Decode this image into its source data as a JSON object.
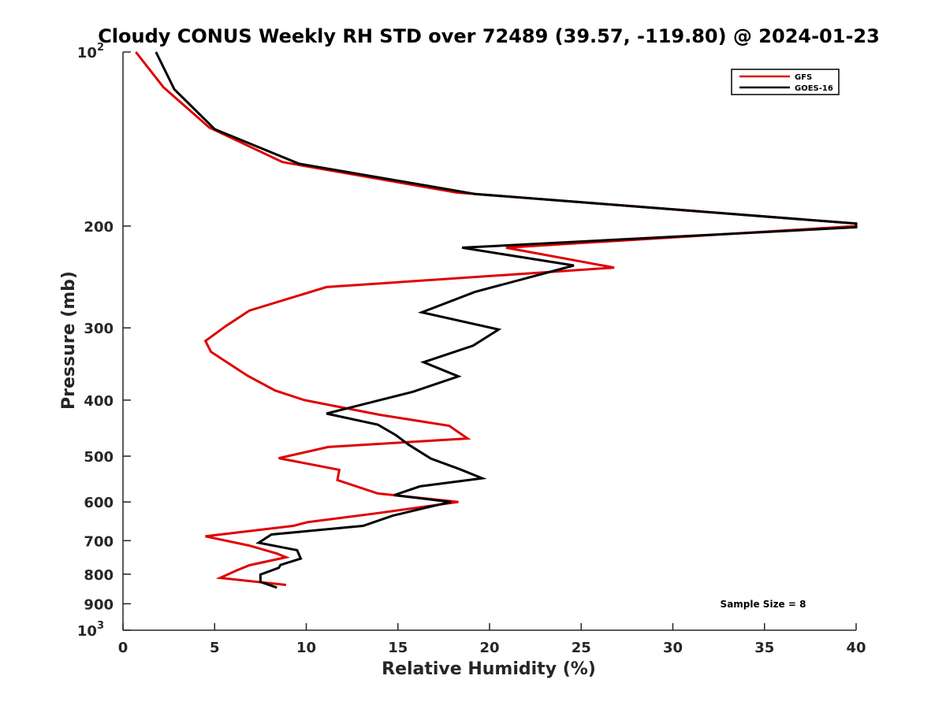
{
  "chart_data": {
    "type": "line",
    "title": "Cloudy CONUS Weekly RH STD over 72489 (39.57, -119.80) @ 2024-01-23",
    "xlabel": "Relative Humidity (%)",
    "ylabel": "Pressure (mb)",
    "xlim": [
      0,
      40
    ],
    "ylim": [
      100,
      1000
    ],
    "yscale": "log",
    "y_reversed": true,
    "x_ticks": [
      "0",
      "5",
      "10",
      "15",
      "20",
      "25",
      "30",
      "35",
      "40"
    ],
    "y_ticks": [
      {
        "value": 100,
        "label": "10",
        "exp": "2"
      },
      {
        "value": 200,
        "label": "200"
      },
      {
        "value": 300,
        "label": "300"
      },
      {
        "value": 400,
        "label": "400"
      },
      {
        "value": 500,
        "label": "500"
      },
      {
        "value": 600,
        "label": "600"
      },
      {
        "value": 700,
        "label": "700"
      },
      {
        "value": 800,
        "label": "800"
      },
      {
        "value": 900,
        "label": "900"
      },
      {
        "value": 1000,
        "label": "10",
        "exp": "3"
      }
    ],
    "legend": {
      "position": "top-right",
      "entries": [
        "GFS",
        "GOES-16"
      ]
    },
    "annotation": "Sample Size = 8",
    "series": [
      {
        "name": "GFS",
        "color": "#e00000",
        "x": [
          0.7,
          2.2,
          4.7,
          8.7,
          18.2,
          40,
          40,
          20.9,
          26.8,
          11.1,
          6.9,
          5.6,
          4.5,
          4.8,
          6.8,
          8.3,
          9.9,
          14.0,
          17.8,
          18.8,
          11.2,
          8.5,
          11.8,
          11.7,
          13.9,
          18.3,
          13.8,
          10.1,
          9.3,
          4.5,
          6.9,
          8.4,
          8.9,
          6.9,
          6.2,
          5.3,
          8.9
        ],
        "y": [
          100,
          115,
          135,
          155,
          175,
          198,
          200,
          218,
          236,
          255,
          280,
          298,
          316,
          330,
          363,
          385,
          400,
          424,
          443,
          466,
          482,
          504,
          528,
          550,
          580,
          600,
          628,
          650,
          660,
          688,
          714,
          737,
          748,
          772,
          788,
          812,
          835
        ]
      },
      {
        "name": "GOES-16",
        "color": "#000000",
        "x": [
          1.8,
          2.8,
          5.0,
          9.6,
          19.2,
          40,
          40,
          18.5,
          24.6,
          19.2,
          16.3,
          20.5,
          19.1,
          16.4,
          18.3,
          15.8,
          11.1,
          13.9,
          14.9,
          15.6,
          16.8,
          18.4,
          19.6,
          16.2,
          14.8,
          17.9,
          16.6,
          14.7,
          13.1,
          8.1,
          7.4,
          9.5,
          9.7,
          8.6,
          8.5,
          7.5,
          7.5,
          8.4
        ],
        "y": [
          100,
          116,
          136,
          156,
          176,
          198,
          201,
          218,
          234,
          260,
          282,
          302,
          322,
          344,
          364,
          387,
          422,
          441,
          460,
          478,
          505,
          527,
          546,
          564,
          584,
          600,
          613,
          634,
          660,
          683,
          706,
          727,
          752,
          771,
          780,
          801,
          825,
          844
        ]
      }
    ]
  }
}
